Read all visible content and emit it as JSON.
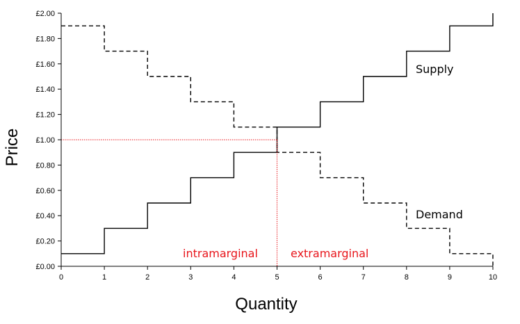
{
  "chart_data": {
    "type": "line",
    "xlabel": "Quantity",
    "ylabel": "Price",
    "xlim": [
      0,
      10
    ],
    "ylim": [
      0,
      2
    ],
    "x_ticks": [
      "0",
      "1",
      "2",
      "3",
      "4",
      "5",
      "6",
      "7",
      "8",
      "9",
      "10"
    ],
    "y_ticks": [
      "£0.00",
      "£0.20",
      "£0.40",
      "£0.60",
      "£0.80",
      "£1.00",
      "£1.20",
      "£1.40",
      "£1.60",
      "£1.80",
      "£2.00"
    ],
    "grid": false,
    "series": [
      {
        "name": "Supply",
        "style": "solid",
        "step": true,
        "x": [
          0,
          1,
          2,
          3,
          4,
          5,
          6,
          7,
          8,
          9,
          10
        ],
        "y": [
          0.1,
          0.3,
          0.5,
          0.7,
          0.9,
          1.1,
          1.3,
          1.5,
          1.7,
          1.9,
          2.0
        ]
      },
      {
        "name": "Demand",
        "style": "dashed",
        "step": true,
        "x": [
          0,
          1,
          2,
          3,
          4,
          5,
          6,
          7,
          8,
          9,
          10
        ],
        "y": [
          1.9,
          1.7,
          1.5,
          1.3,
          1.1,
          0.9,
          0.7,
          0.5,
          0.3,
          0.1,
          0.0
        ]
      }
    ],
    "equilibrium": {
      "x": 5,
      "y": 1.0
    },
    "annotations": {
      "left_region": "intramarginal",
      "right_region": "extramarginal"
    },
    "colors": {
      "curves": "#000000",
      "annotation": "#e8141a"
    }
  }
}
